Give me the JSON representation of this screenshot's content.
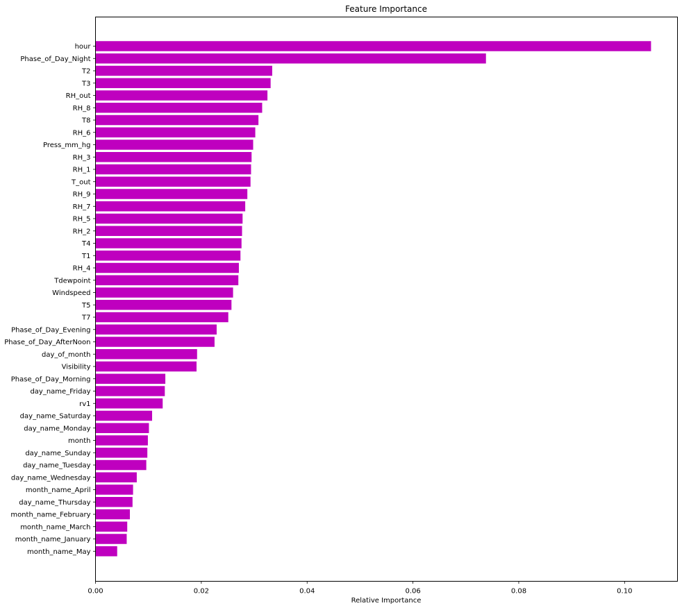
{
  "chart_data": {
    "type": "bar",
    "orientation": "horizontal",
    "title": "Feature Importance",
    "xlabel": "Relative Importance",
    "ylabel": "",
    "xlim": [
      0,
      0.11
    ],
    "xticks": [
      0.0,
      0.02,
      0.04,
      0.06,
      0.08,
      0.1
    ],
    "xtick_labels": [
      "0.00",
      "0.02",
      "0.04",
      "0.06",
      "0.08",
      "0.10"
    ],
    "grid": false,
    "bar_color": "#bf00bf",
    "categories": [
      "hour",
      "Phase_of_Day_Night",
      "T2",
      "T3",
      "RH_out",
      "RH_8",
      "T8",
      "RH_6",
      "Press_mm_hg",
      "RH_3",
      "RH_1",
      "T_out",
      "RH_9",
      "RH_7",
      "RH_5",
      "RH_2",
      "T4",
      "T1",
      "RH_4",
      "Tdewpoint",
      "Windspeed",
      "T5",
      "T7",
      "Phase_of_Day_Evening",
      "Phase_of_Day_AfterNoon",
      "day_of_month",
      "Visibility",
      "Phase_of_Day_Morning",
      "day_name_Friday",
      "rv1",
      "day_name_Saturday",
      "day_name_Monday",
      "month",
      "day_name_Sunday",
      "day_name_Tuesday",
      "day_name_Wednesday",
      "month_name_April",
      "day_name_Thursday",
      "month_name_February",
      "month_name_March",
      "month_name_January",
      "month_name_May"
    ],
    "values": [
      0.105,
      0.0738,
      0.0334,
      0.0331,
      0.0325,
      0.0315,
      0.0308,
      0.0302,
      0.0298,
      0.0295,
      0.0294,
      0.0293,
      0.0287,
      0.0283,
      0.0278,
      0.0277,
      0.0276,
      0.0274,
      0.0271,
      0.027,
      0.026,
      0.0257,
      0.0251,
      0.0229,
      0.0225,
      0.0192,
      0.0191,
      0.0132,
      0.0131,
      0.0127,
      0.0107,
      0.0101,
      0.0099,
      0.0098,
      0.0096,
      0.0078,
      0.0071,
      0.007,
      0.0065,
      0.006,
      0.0059,
      0.0041
    ]
  }
}
